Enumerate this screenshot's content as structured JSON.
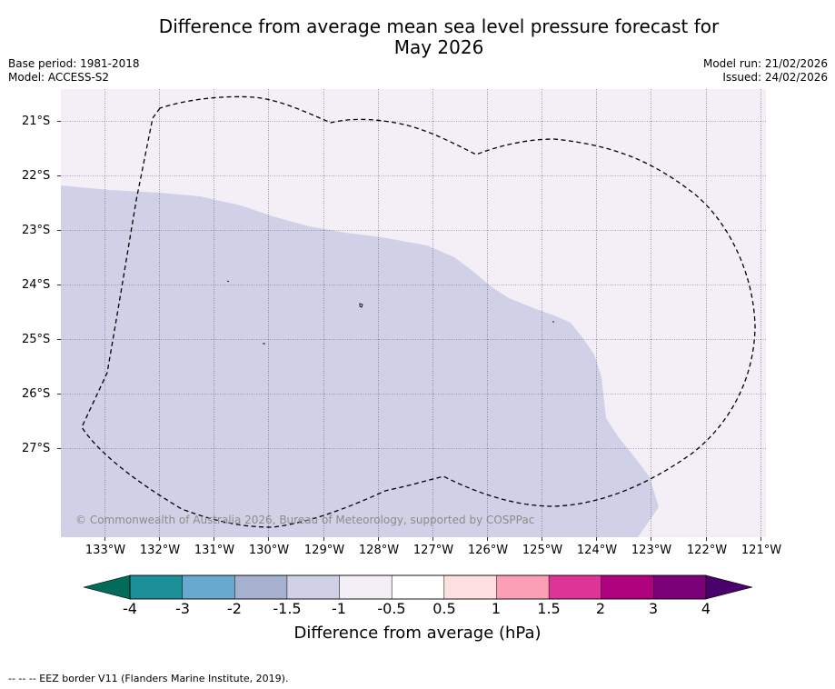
{
  "title": {
    "line1": "Difference from average mean sea level pressure forecast for",
    "line2": "May 2026"
  },
  "meta": {
    "base_period": "Base period: 1981-2018",
    "model": "Model: ACCESS-S2",
    "model_run": "Model run: 21/02/2026",
    "issued": "Issued: 24/02/2026"
  },
  "map": {
    "lat_labels": [
      "21°S",
      "22°S",
      "23°S",
      "24°S",
      "25°S",
      "26°S",
      "27°S"
    ],
    "lon_labels": [
      "133°W",
      "132°W",
      "131°W",
      "130°W",
      "129°W",
      "128°W",
      "127°W",
      "126°W",
      "125°W",
      "124°W",
      "123°W",
      "122°W",
      "121°W"
    ],
    "region_colors": {
      "range_-1.5_to_-1": "#d0d1e6",
      "range_-1_to_-0.5": "#f4eef6"
    },
    "copyright": "© Commonwealth of Australia 2026, Bureau of Meteorology, supported by COSPPac"
  },
  "colorbar": {
    "label": "Difference from average (hPa)",
    "ticks": [
      "-4",
      "-3",
      "-2",
      "-1.5",
      "-1",
      "-0.5",
      "0.5",
      "1",
      "1.5",
      "2",
      "3",
      "4"
    ],
    "under_color": "#016c59",
    "over_color": "#49006a",
    "colors": [
      "#1c9099",
      "#67a9cf",
      "#a6b0cf",
      "#d0d1e6",
      "#f4eef6",
      "#ffffff",
      "#fee0e0",
      "#fa9fb5",
      "#dd3497",
      "#ae017e",
      "#7a0177"
    ]
  },
  "footer": "--  --  -- EEZ border V11 (Flanders Marine Institute, 2019)."
}
